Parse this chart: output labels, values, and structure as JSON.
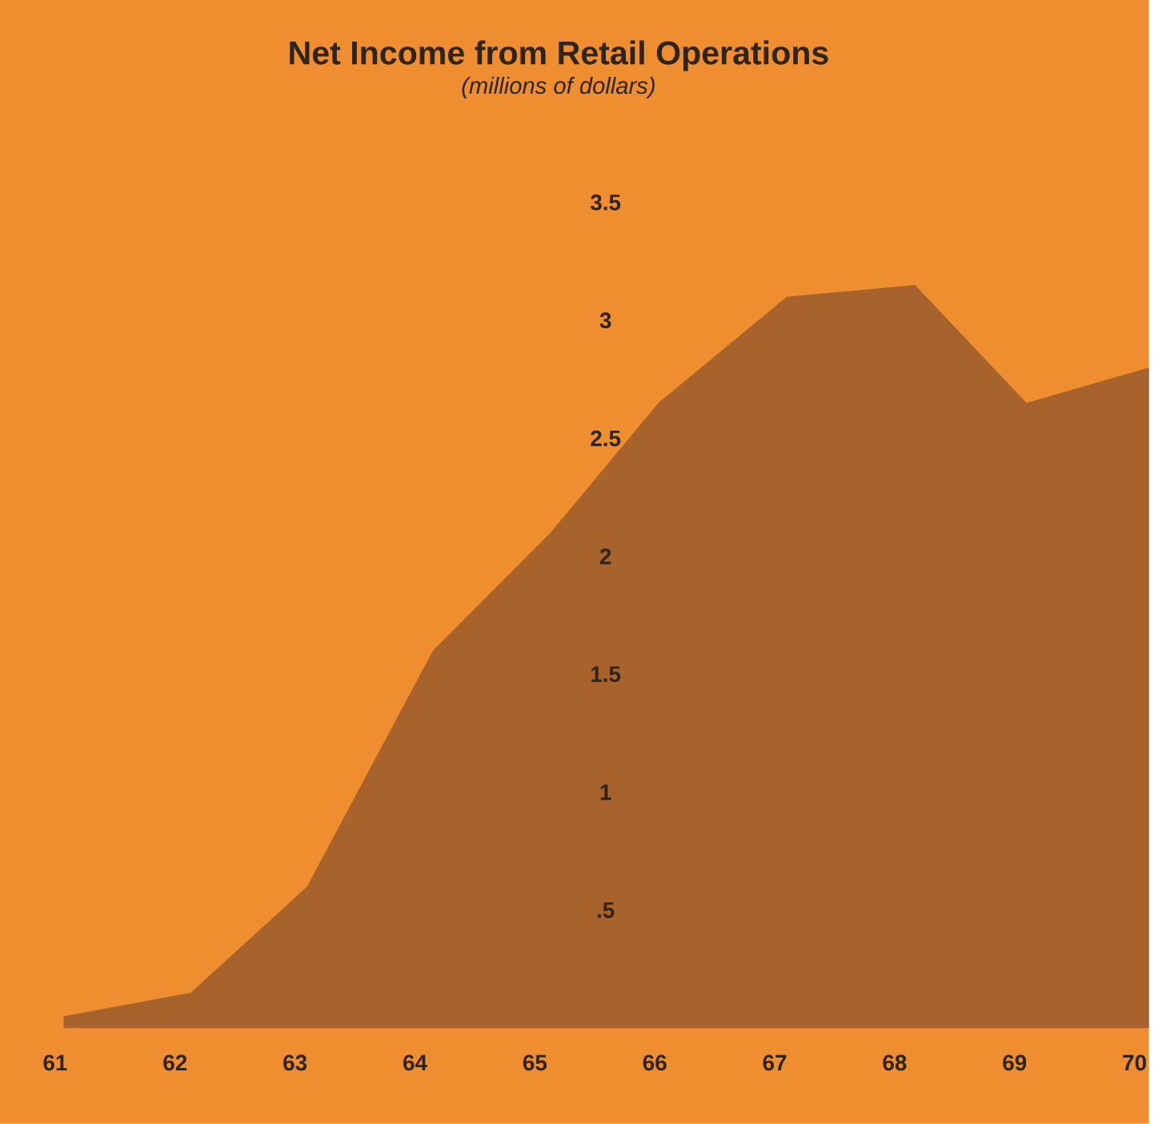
{
  "chart_data": {
    "type": "area",
    "title": "Net Income from Retail Operations",
    "subtitle": "(millions of dollars)",
    "x": [
      61.07,
      62.13,
      63.1,
      64.15,
      65.13,
      66.03,
      67.1,
      68.17,
      69.1,
      70.12
    ],
    "values": [
      0.05,
      0.15,
      0.6,
      1.6,
      2.1,
      2.65,
      3.1,
      3.15,
      2.65,
      2.8
    ],
    "color": "#a8622b",
    "xlim": [
      60.54,
      70.12
    ],
    "xticks": [
      61,
      62,
      63,
      64,
      65,
      66,
      67,
      68,
      69,
      70
    ],
    "ylim": [
      0,
      3.5
    ],
    "yticks": [
      {
        "value": 0.5,
        "label": ".5"
      },
      1,
      1.5,
      2,
      2.5,
      3,
      3.5
    ],
    "grid": false
  }
}
